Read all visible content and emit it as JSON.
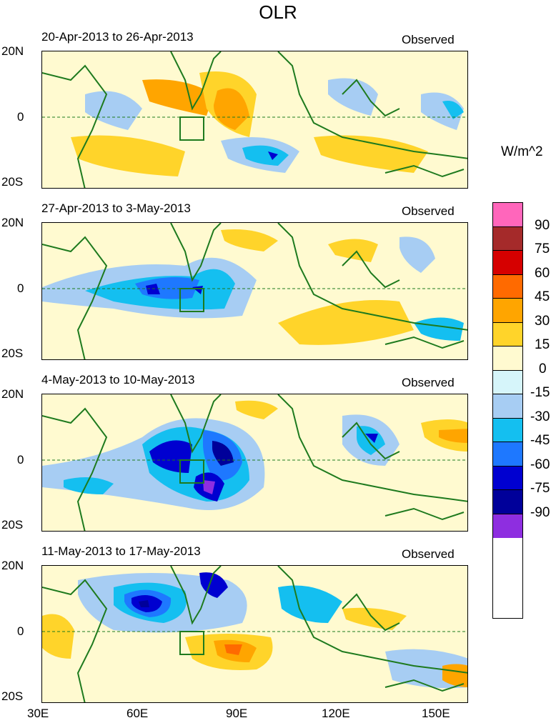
{
  "title": "OLR",
  "units": "W/m^2",
  "panels": [
    {
      "date": "20-Apr-2013 to 26-Apr-2013",
      "label": "Observed"
    },
    {
      "date": "27-Apr-2013 to 3-May-2013",
      "label": "Observed"
    },
    {
      "date": "4-May-2013 to 10-May-2013",
      "label": "Observed"
    },
    {
      "date": "11-May-2013 to 17-May-2013",
      "label": "Observed"
    }
  ],
  "lat_labels": [
    "20N",
    "0",
    "20S"
  ],
  "lon_labels": [
    "30E",
    "60E",
    "90E",
    "120E",
    "150E"
  ],
  "colorbar": {
    "labels": [
      "90",
      "75",
      "60",
      "45",
      "30",
      "15",
      "0",
      "-15",
      "-30",
      "-45",
      "-60",
      "-75",
      "-90"
    ],
    "colors": [
      "#ff66bb",
      "#a52a2a",
      "#d60000",
      "#ff6a00",
      "#ffa500",
      "#ffd42a",
      "#fffad0",
      "#d6f5fa",
      "#a7cdf3",
      "#14bff0",
      "#1e78ff",
      "#0000d0",
      "#00009a",
      "#8e2ee0"
    ]
  }
}
